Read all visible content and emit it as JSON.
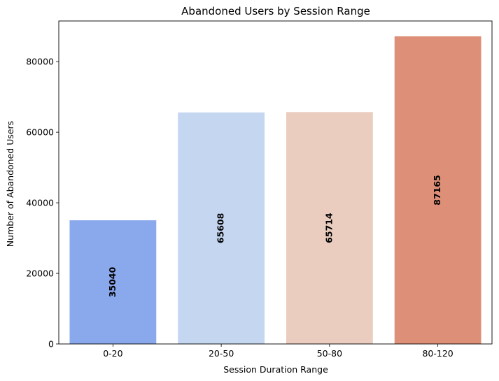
{
  "chart_data": {
    "type": "bar",
    "title": "Abandoned Users by Session Range",
    "xlabel": "Session Duration Range",
    "ylabel": "Number of Abandoned Users",
    "categories": [
      "0-20",
      "20-50",
      "50-80",
      "80-120"
    ],
    "values": [
      35040,
      65608,
      65714,
      87165
    ],
    "data_labels": [
      "35040",
      "65608",
      "65714",
      "87165"
    ],
    "colors": [
      "#8aa8ec",
      "#c5d6f1",
      "#eacdbf",
      "#dd8f78"
    ],
    "ylim": [
      0,
      91524
    ],
    "yticks": [
      0,
      20000,
      40000,
      60000,
      80000
    ],
    "ytick_labels": [
      "0",
      "20000",
      "40000",
      "60000",
      "80000"
    ],
    "grid": false,
    "legend": "none",
    "data_label_position": "center-rotated"
  }
}
